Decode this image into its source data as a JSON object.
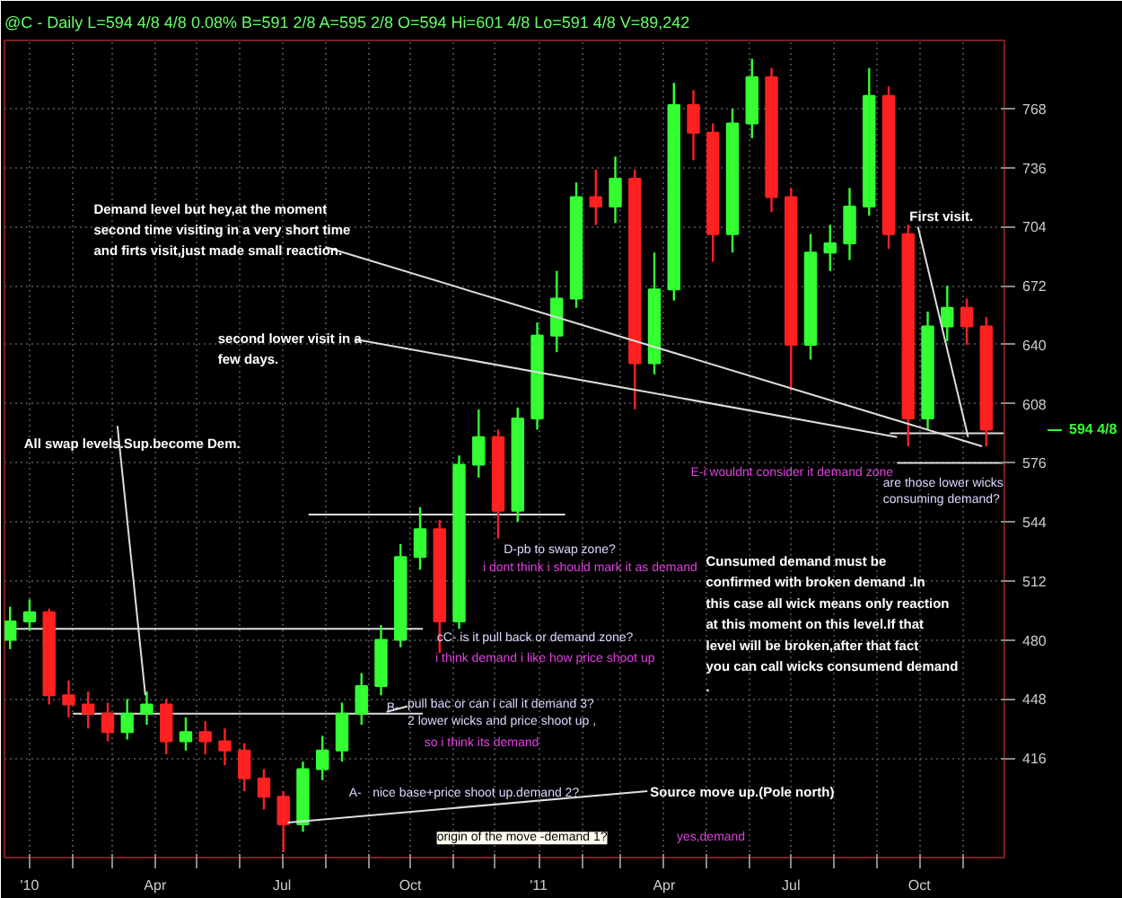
{
  "chart_data": {
    "type": "candlestick",
    "subtitle": "@C - Daily  L=594 4/8  4/8    0.08%   B=591 2/8  A=595 2/8  O=594  Hi=601 4/8  Lo=591 4/8  V=89,242",
    "x": [
      "2009-12-18",
      "2010-01-01",
      "2010-01-15",
      "2010-01-29",
      "2010-02-12",
      "2010-02-26",
      "2010-03-12",
      "2010-03-26",
      "2010-04-09",
      "2010-04-23",
      "2010-05-07",
      "2010-05-21",
      "2010-06-04",
      "2010-06-18",
      "2010-07-02",
      "2010-07-16",
      "2010-07-30",
      "2010-08-13",
      "2010-08-27",
      "2010-09-10",
      "2010-09-24",
      "2010-10-08",
      "2010-10-22",
      "2010-11-05",
      "2010-11-19",
      "2010-12-03",
      "2010-12-17",
      "2010-12-31",
      "2011-01-14",
      "2011-01-28",
      "2011-02-11",
      "2011-02-25",
      "2011-03-11",
      "2011-03-25",
      "2011-04-08",
      "2011-04-22",
      "2011-05-06",
      "2011-05-20",
      "2011-06-03",
      "2011-06-17",
      "2011-07-01",
      "2011-07-15",
      "2011-07-29",
      "2011-08-12",
      "2011-08-26",
      "2011-09-09",
      "2011-09-23",
      "2011-10-07",
      "2011-10-21",
      "2011-11-04",
      "2011-11-18"
    ],
    "ohlc": [
      [
        480,
        498,
        475,
        490
      ],
      [
        490,
        502,
        485,
        495
      ],
      [
        495,
        497,
        445,
        450
      ],
      [
        450,
        458,
        438,
        445
      ],
      [
        445,
        452,
        432,
        440
      ],
      [
        440,
        446,
        425,
        430
      ],
      [
        430,
        448,
        426,
        440
      ],
      [
        440,
        452,
        434,
        445
      ],
      [
        445,
        448,
        418,
        425
      ],
      [
        425,
        438,
        420,
        430
      ],
      [
        430,
        436,
        418,
        425
      ],
      [
        425,
        432,
        412,
        420
      ],
      [
        420,
        424,
        398,
        405
      ],
      [
        405,
        410,
        388,
        395
      ],
      [
        395,
        398,
        365,
        380
      ],
      [
        380,
        414,
        376,
        410
      ],
      [
        410,
        428,
        404,
        420
      ],
      [
        420,
        446,
        414,
        440
      ],
      [
        440,
        462,
        434,
        455
      ],
      [
        455,
        488,
        450,
        480
      ],
      [
        480,
        532,
        476,
        525
      ],
      [
        525,
        552,
        518,
        540
      ],
      [
        540,
        545,
        473,
        490
      ],
      [
        490,
        580,
        486,
        575
      ],
      [
        575,
        605,
        568,
        590
      ],
      [
        590,
        594,
        535,
        550
      ],
      [
        550,
        606,
        544,
        600
      ],
      [
        600,
        652,
        594,
        645
      ],
      [
        645,
        680,
        636,
        665
      ],
      [
        665,
        728,
        660,
        720
      ],
      [
        720,
        735,
        705,
        715
      ],
      [
        715,
        742,
        706,
        730
      ],
      [
        730,
        735,
        605,
        630
      ],
      [
        630,
        690,
        624,
        670
      ],
      [
        670,
        782,
        664,
        770
      ],
      [
        770,
        778,
        740,
        755
      ],
      [
        755,
        760,
        685,
        700
      ],
      [
        700,
        768,
        690,
        760
      ],
      [
        760,
        795,
        752,
        785
      ],
      [
        785,
        790,
        712,
        720
      ],
      [
        720,
        725,
        615,
        640
      ],
      [
        640,
        700,
        632,
        690
      ],
      [
        690,
        705,
        680,
        695
      ],
      [
        695,
        725,
        686,
        715
      ],
      [
        715,
        790,
        710,
        775
      ],
      [
        775,
        780,
        692,
        700
      ],
      [
        700,
        705,
        585,
        600
      ],
      [
        600,
        658,
        594,
        650
      ],
      [
        650,
        672,
        642,
        660
      ],
      [
        660,
        665,
        640,
        650
      ],
      [
        650,
        655,
        585,
        594
      ]
    ],
    "colors": [
      "#33ff33",
      "#33ff33",
      "#ff2020",
      "#ff2020",
      "#ff2020",
      "#ff2020",
      "#33ff33",
      "#33ff33",
      "#ff2020",
      "#33ff33",
      "#ff2020",
      "#ff2020",
      "#ff2020",
      "#ff2020",
      "#ff2020",
      "#33ff33",
      "#33ff33",
      "#33ff33",
      "#33ff33",
      "#33ff33",
      "#33ff33",
      "#33ff33",
      "#ff2020",
      "#33ff33",
      "#33ff33",
      "#ff2020",
      "#33ff33",
      "#33ff33",
      "#33ff33",
      "#33ff33",
      "#ff2020",
      "#33ff33",
      "#ff2020",
      "#33ff33",
      "#33ff33",
      "#ff2020",
      "#ff2020",
      "#33ff33",
      "#33ff33",
      "#ff2020",
      "#ff2020",
      "#33ff33",
      "#33ff33",
      "#33ff33",
      "#33ff33",
      "#ff2020",
      "#ff2020",
      "#33ff33",
      "#33ff33",
      "#ff2020",
      "#ff2020"
    ],
    "xlim": [
      "2009-12-14",
      "2011-12-01"
    ],
    "ylim": [
      362,
      805
    ],
    "yticks": [
      416,
      448,
      480,
      512,
      544,
      576,
      608,
      640,
      672,
      704,
      736,
      768
    ],
    "xticks": [
      {
        "value": "2010-01",
        "label": "'10"
      },
      {
        "value": "2010-02",
        "label": null
      },
      {
        "value": "2010-03",
        "label": null
      },
      {
        "value": "2010-04",
        "label": "Apr"
      },
      {
        "value": "2010-05",
        "label": null
      },
      {
        "value": "2010-06",
        "label": null
      },
      {
        "value": "2010-07",
        "label": "Jul"
      },
      {
        "value": "2010-08",
        "label": null
      },
      {
        "value": "2010-09",
        "label": null
      },
      {
        "value": "2010-10",
        "label": "Oct"
      },
      {
        "value": "2010-11",
        "label": null
      },
      {
        "value": "2010-12",
        "label": null
      },
      {
        "value": "2011-01",
        "label": "'11"
      },
      {
        "value": "2011-02",
        "label": null
      },
      {
        "value": "2011-03",
        "label": null
      },
      {
        "value": "2011-04",
        "label": "Apr"
      },
      {
        "value": "2011-05",
        "label": null
      },
      {
        "value": "2011-06",
        "label": null
      },
      {
        "value": "2011-07",
        "label": "Jul"
      },
      {
        "value": "2011-08",
        "label": null
      },
      {
        "value": "2011-09",
        "label": null
      },
      {
        "value": "2011-10",
        "label": "Oct"
      },
      {
        "value": "2011-11",
        "label": null
      }
    ],
    "grid": true,
    "ref_lines": [
      {
        "axis": "y",
        "value": 486,
        "color": "#dddddd"
      },
      {
        "axis": "y",
        "value": 440,
        "color": "#dddddd"
      },
      {
        "axis": "y",
        "value": 548,
        "color": "#dddddd"
      },
      {
        "axis": "y",
        "value": 592,
        "color": "#dddddd"
      },
      {
        "axis": "y",
        "value": 576,
        "color": "#dddddd"
      }
    ],
    "annotations": [
      {
        "text": "Demand level but hey,at the moment\nsecond time visiting in a very short time\nand firts visit,just made small reaction.",
        "x": "2011-11-15",
        "y": 585
      },
      {
        "text": "second lower visit in a\nfew days.",
        "x": "2011-09-15",
        "y": 590
      },
      {
        "text": "All swap levels.Sup.become Dem.",
        "x": "2010-03-25",
        "y": 450
      },
      {
        "text": "First visit.",
        "x": "2011-11-05",
        "y": 590
      },
      "E-i wouldnt consider it demand zone",
      "are those lower wicks\nconsuming demand?",
      "D-pb to swap zone?",
      "i dont think i should mark it as demand",
      "Cunsumed demand must be\nconfirmed with broken demand .In\nthis case all wick means only reaction\nat this moment on this level.If that\nlevel will be broken,after that fact\nyou can call wicks consumend demand\n.",
      "cC- is it pull back or demand zone?",
      "i think demand i like how price shoot up",
      "B-",
      {
        "text": "pull bac or can i call it demand 3?\n2 lower wicks and price shoot up ,",
        "x": "2010-09-14",
        "y": 441
      },
      "so i think its demand",
      "A-",
      "nice base+price shoot up.demand 2?",
      {
        "text": "Source move up.(Pole north)",
        "x": "2010-07-05",
        "y": 381
      },
      "origin of the move -demand 1?",
      "yes,demand",
      "594 4/8"
    ]
  }
}
